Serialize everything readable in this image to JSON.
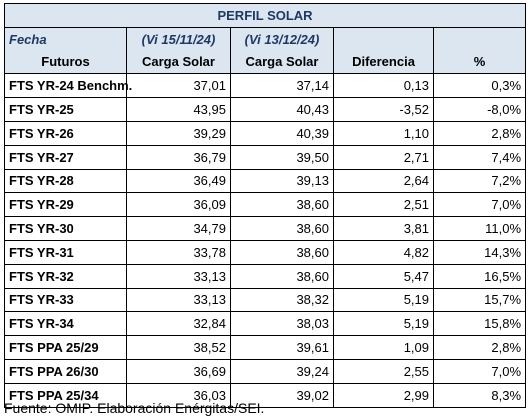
{
  "title": "PERFIL SOLAR",
  "header": {
    "col1_top": "Fecha",
    "col1_bottom": "Futuros",
    "col2_top": "(Vi 15/11/24)",
    "col2_bottom": "Carga Solar",
    "col3_top": "(Vi 13/12/24)",
    "col3_bottom": "Carga Solar",
    "col4": "Diferencia",
    "col5": "%"
  },
  "rows": [
    {
      "name": "FTS YR-24 Benchm.",
      "v1": "37,01",
      "v2": "37,14",
      "diff": "0,13",
      "pct": "0,3%"
    },
    {
      "name": "FTS YR-25",
      "v1": "43,95",
      "v2": "40,43",
      "diff": "-3,52",
      "pct": "-8,0%"
    },
    {
      "name": "FTS YR-26",
      "v1": "39,29",
      "v2": "40,39",
      "diff": "1,10",
      "pct": "2,8%"
    },
    {
      "name": "FTS YR-27",
      "v1": "36,79",
      "v2": "39,50",
      "diff": "2,71",
      "pct": "7,4%"
    },
    {
      "name": "FTS YR-28",
      "v1": "36,49",
      "v2": "39,13",
      "diff": "2,64",
      "pct": "7,2%"
    },
    {
      "name": "FTS YR-29",
      "v1": "36,09",
      "v2": "38,60",
      "diff": "2,51",
      "pct": "7,0%"
    },
    {
      "name": "FTS YR-30",
      "v1": "34,79",
      "v2": "38,60",
      "diff": "3,81",
      "pct": "11,0%"
    },
    {
      "name": "FTS YR-31",
      "v1": "33,78",
      "v2": "38,60",
      "diff": "4,82",
      "pct": "14,3%"
    },
    {
      "name": "FTS YR-32",
      "v1": "33,13",
      "v2": "38,60",
      "diff": "5,47",
      "pct": "16,5%"
    },
    {
      "name": "FTS YR-33",
      "v1": "33,13",
      "v2": "38,32",
      "diff": "5,19",
      "pct": "15,7%"
    },
    {
      "name": "FTS YR-34",
      "v1": "32,84",
      "v2": "38,03",
      "diff": "5,19",
      "pct": "15,8%"
    },
    {
      "name": "FTS PPA 25/29",
      "v1": "38,52",
      "v2": "39,61",
      "diff": "1,09",
      "pct": "2,8%"
    },
    {
      "name": "FTS PPA 26/30",
      "v1": "36,69",
      "v2": "39,24",
      "diff": "2,55",
      "pct": "7,0%"
    },
    {
      "name": "FTS PPA 25/34",
      "v1": "36,03",
      "v2": "39,02",
      "diff": "2,99",
      "pct": "8,3%"
    }
  ],
  "footer": "Fuente: OMIP. Elaboración Enérgitas/SEI."
}
